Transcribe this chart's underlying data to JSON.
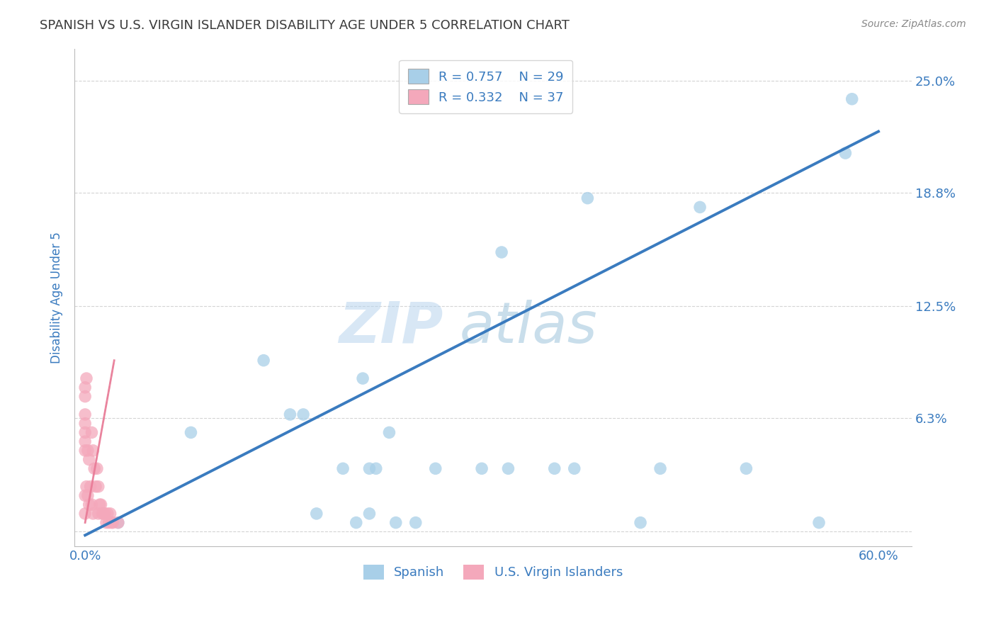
{
  "title": "SPANISH VS U.S. VIRGIN ISLANDER DISABILITY AGE UNDER 5 CORRELATION CHART",
  "source": "Source: ZipAtlas.com",
  "ylabel": "Disability Age Under 5",
  "watermark_zip": "ZIP",
  "watermark_atlas": "atlas",
  "blue_R": 0.757,
  "blue_N": 29,
  "pink_R": 0.332,
  "pink_N": 37,
  "xlim": [
    -0.008,
    0.625
  ],
  "ylim": [
    -0.008,
    0.268
  ],
  "xticks": [
    0.0,
    0.1,
    0.2,
    0.3,
    0.4,
    0.5,
    0.6
  ],
  "xtick_labels": [
    "0.0%",
    "",
    "",
    "",
    "",
    "",
    "60.0%"
  ],
  "ytick_positions": [
    0.0,
    0.063,
    0.125,
    0.188,
    0.25
  ],
  "ytick_labels": [
    "",
    "6.3%",
    "12.5%",
    "18.8%",
    "25.0%"
  ],
  "blue_scatter_x": [
    0.025,
    0.08,
    0.135,
    0.155,
    0.165,
    0.175,
    0.195,
    0.205,
    0.21,
    0.215,
    0.215,
    0.22,
    0.23,
    0.235,
    0.25,
    0.265,
    0.3,
    0.315,
    0.32,
    0.355,
    0.37,
    0.38,
    0.42,
    0.435,
    0.465,
    0.5,
    0.555,
    0.575,
    0.58
  ],
  "blue_scatter_y": [
    0.005,
    0.055,
    0.095,
    0.065,
    0.065,
    0.01,
    0.035,
    0.005,
    0.085,
    0.035,
    0.01,
    0.035,
    0.055,
    0.005,
    0.005,
    0.035,
    0.035,
    0.155,
    0.035,
    0.035,
    0.035,
    0.185,
    0.005,
    0.035,
    0.18,
    0.035,
    0.005,
    0.21,
    0.24
  ],
  "pink_scatter_x": [
    0.0,
    0.0,
    0.0,
    0.0,
    0.0,
    0.0,
    0.0,
    0.0,
    0.0,
    0.001,
    0.001,
    0.002,
    0.002,
    0.003,
    0.003,
    0.004,
    0.005,
    0.005,
    0.006,
    0.006,
    0.007,
    0.008,
    0.009,
    0.01,
    0.01,
    0.011,
    0.012,
    0.013,
    0.014,
    0.015,
    0.016,
    0.017,
    0.018,
    0.019,
    0.02,
    0.021,
    0.025
  ],
  "pink_scatter_y": [
    0.08,
    0.075,
    0.065,
    0.06,
    0.055,
    0.05,
    0.045,
    0.02,
    0.01,
    0.085,
    0.025,
    0.045,
    0.02,
    0.04,
    0.015,
    0.025,
    0.055,
    0.015,
    0.045,
    0.01,
    0.035,
    0.025,
    0.035,
    0.025,
    0.01,
    0.015,
    0.015,
    0.01,
    0.01,
    0.01,
    0.005,
    0.01,
    0.005,
    0.01,
    0.005,
    0.005,
    0.005
  ],
  "blue_line_x": [
    0.0,
    0.6
  ],
  "blue_line_y": [
    -0.002,
    0.222
  ],
  "pink_line_x": [
    0.0,
    0.022
  ],
  "pink_line_y": [
    0.005,
    0.095
  ],
  "blue_color": "#a8cfe8",
  "pink_color": "#f4a8bb",
  "blue_line_color": "#3a7bbf",
  "pink_line_color": "#e87a96",
  "title_color": "#3a3a3a",
  "axis_label_color": "#3a7bbf",
  "tick_color": "#3a7bbf",
  "grid_color": "#d0d0d0",
  "legend_text_color": "#3a7bbf",
  "background_color": "#ffffff"
}
